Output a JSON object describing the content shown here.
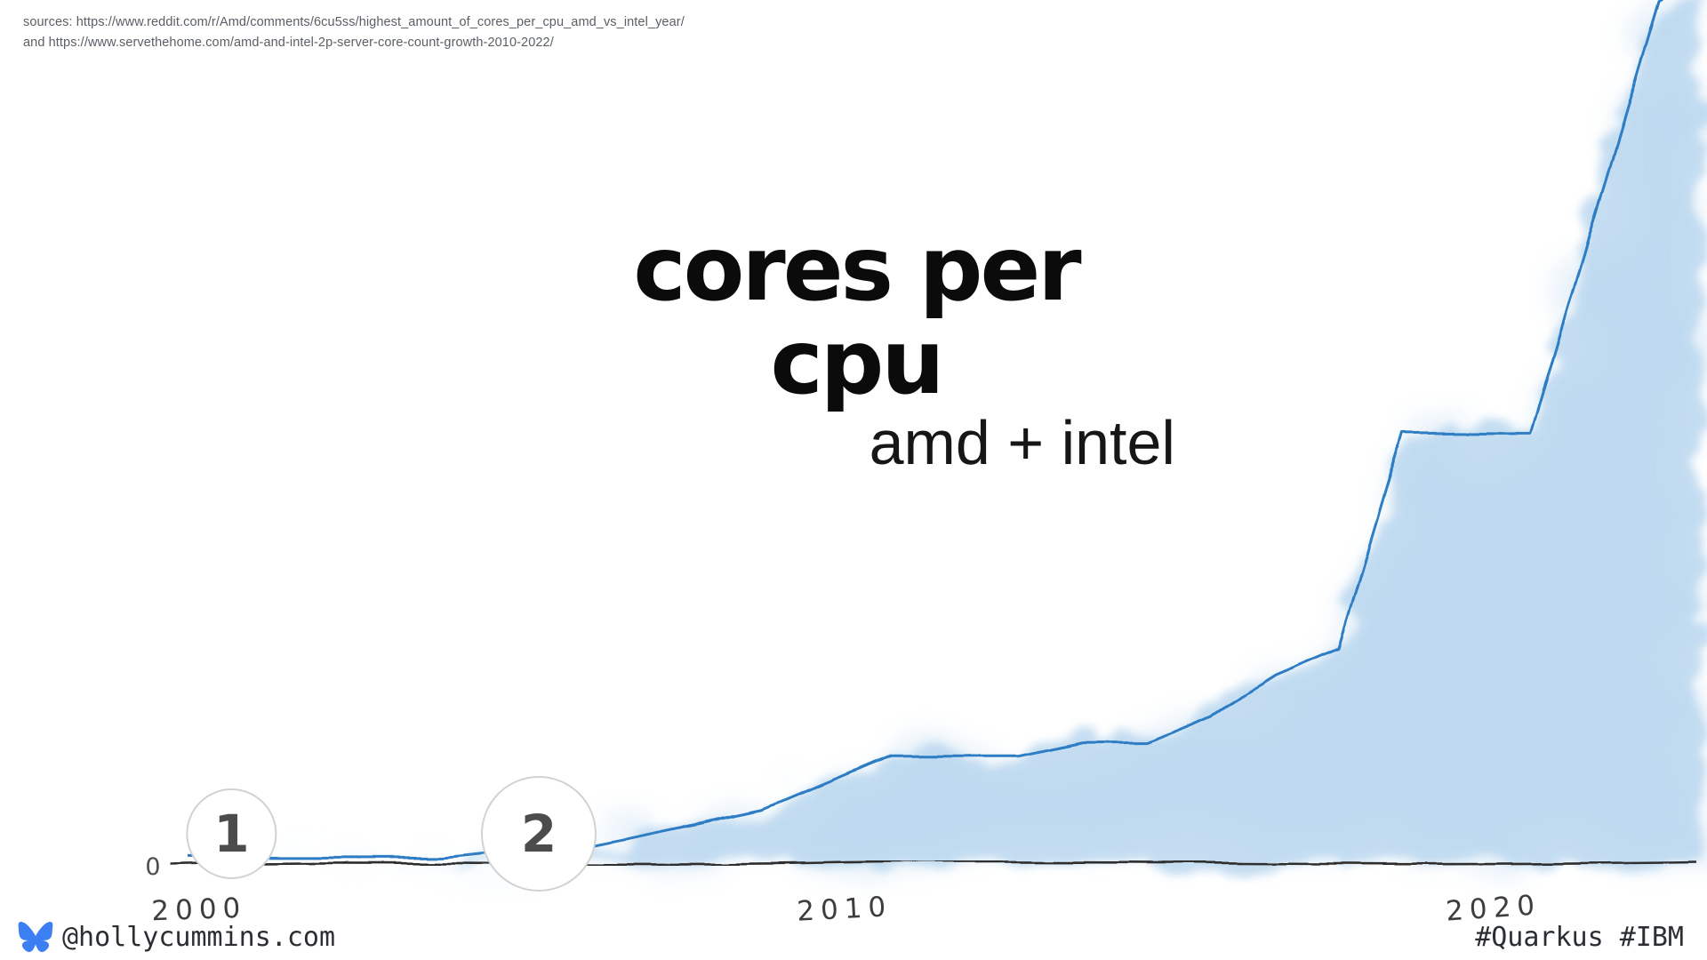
{
  "sources": {
    "line1": "sources: https://www.reddit.com/r/Amd/comments/6cu5ss/highest_amount_of_cores_per_cpu_amd_vs_intel_year/",
    "line2": "and https://www.servethehome.com/amd-and-intel-2p-server-core-count-growth-2010-2022/"
  },
  "title": "cores per cpu",
  "subtitle": "amd + intel",
  "footer": {
    "handle": "@hollycummins.com",
    "hashtags": "#Quarkus #IBM",
    "logo_icon": "bluesky-butterfly-icon"
  },
  "chart_data": {
    "type": "area",
    "title": "cores per cpu",
    "subtitle": "amd + intel",
    "style": "hand-drawn watercolor",
    "x": [
      2000,
      2001,
      2002,
      2003,
      2004,
      2005,
      2006,
      2007,
      2008,
      2009,
      2010,
      2011,
      2012,
      2013,
      2014,
      2015,
      2016,
      2017,
      2018,
      2019,
      2020,
      2021,
      2022,
      2023
    ],
    "values": [
      1,
      1,
      1,
      1,
      1,
      2,
      2,
      4,
      6,
      8,
      12,
      16,
      16,
      16,
      18,
      18,
      22,
      28,
      32,
      64,
      64,
      64,
      96,
      128
    ],
    "xlabel": "",
    "ylabel": "",
    "ylim": [
      0,
      130
    ],
    "x_ticks": [
      {
        "year": 2000,
        "label": "2000"
      },
      {
        "year": 2010,
        "label": "2010"
      },
      {
        "year": 2020,
        "label": "2020"
      }
    ],
    "y_origin_label": "0",
    "annotations": [
      {
        "label": "1",
        "year": 2000.7
      },
      {
        "label": "2",
        "year": 2005.5
      }
    ],
    "line_color": "#2e7dc4",
    "fill_color": "#b5d4ee",
    "axis_color": "#2e2e2e",
    "grid": false,
    "legend": false
  }
}
